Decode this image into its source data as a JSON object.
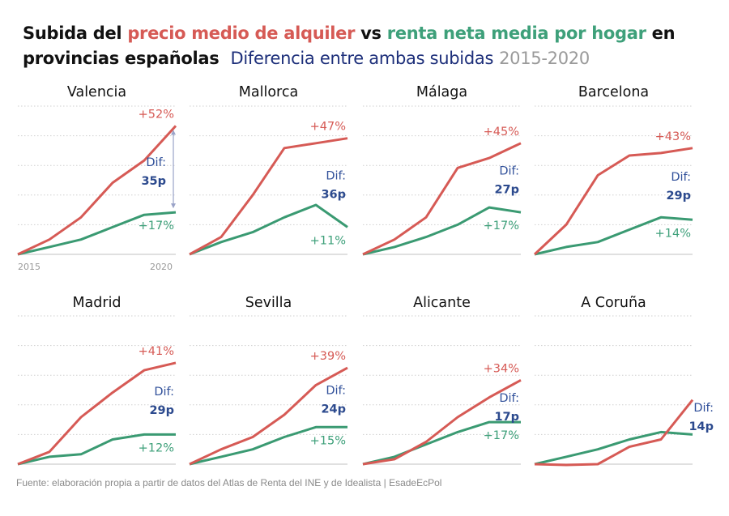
{
  "header": {
    "title_part1": "Subida del ",
    "title_rent": "precio medio de alquiler",
    "title_vs": " vs ",
    "title_income": "renta neta media por hogar",
    "title_part2": " en provincias españolas",
    "subtitle": "Diferencia entre ambas subidas",
    "years": "2015-2020"
  },
  "colors": {
    "rent": "#d65a55",
    "income": "#3a9a72",
    "difference": "#2c4a8e",
    "grid": "#cfcfcf"
  },
  "source": "Fuente: elaboración propia a partir de datos del Atlas de Renta del INE y de Idealista | EsadeEcPol",
  "chart_data": {
    "type": "line",
    "title": "Subida del precio medio de alquiler vs renta neta media por hogar en provincias españolas",
    "subtitle": "Diferencia entre ambas subidas 2015-2020",
    "x": [
      2015,
      2016,
      2017,
      2018,
      2019,
      2020
    ],
    "x_tick_labels": [
      "2015",
      "2020"
    ],
    "ylabel": "",
    "ylim": [
      0,
      60
    ],
    "grid": true,
    "y_grid_step": 12,
    "series_names": [
      "precio medio de alquiler",
      "renta neta media por hogar"
    ],
    "dif_label": "Dif:",
    "panels": [
      {
        "name": "Valencia",
        "rent": [
          0,
          6,
          15,
          29,
          38,
          52
        ],
        "income": [
          0,
          3,
          6,
          11,
          16,
          17
        ],
        "rent_label": "+52%",
        "income_label": "+17%",
        "dif_value": "35p",
        "arrow": true
      },
      {
        "name": "Mallorca",
        "rent": [
          0,
          7,
          24,
          43,
          45,
          47
        ],
        "income": [
          0,
          5,
          9,
          15,
          20,
          11
        ],
        "rent_label": "+47%",
        "income_label": "+11%",
        "dif_value": "36p",
        "arrow": false
      },
      {
        "name": "Málaga",
        "rent": [
          0,
          6,
          15,
          35,
          39,
          45
        ],
        "income": [
          0,
          3,
          7,
          12,
          19,
          17
        ],
        "rent_label": "+45%",
        "income_label": "+17%",
        "dif_value": "27p",
        "arrow": false
      },
      {
        "name": "Barcelona",
        "rent": [
          0,
          12,
          32,
          40,
          41,
          43
        ],
        "income": [
          0,
          3,
          5,
          10,
          15,
          14
        ],
        "rent_label": "+43%",
        "income_label": "+14%",
        "dif_value": "29p",
        "arrow": false
      },
      {
        "name": "Madrid",
        "rent": [
          0,
          5,
          19,
          29,
          38,
          41
        ],
        "income": [
          0,
          3,
          4,
          10,
          12,
          12
        ],
        "rent_label": "+41%",
        "income_label": "+12%",
        "dif_value": "29p",
        "arrow": false
      },
      {
        "name": "Sevilla",
        "rent": [
          0,
          6,
          11,
          20,
          32,
          39
        ],
        "income": [
          0,
          3,
          6,
          11,
          15,
          15
        ],
        "rent_label": "+39%",
        "income_label": "+15%",
        "dif_value": "24p",
        "arrow": false
      },
      {
        "name": "Alicante",
        "rent": [
          0,
          2,
          9,
          19,
          27,
          34
        ],
        "income": [
          0,
          3,
          8,
          13,
          17,
          17
        ],
        "rent_label": "+34%",
        "income_label": "+17%",
        "dif_value": "17p",
        "arrow": false
      },
      {
        "name": "A Coruña",
        "rent": [
          0,
          -1,
          0,
          7,
          10,
          26
        ],
        "income": [
          0,
          3,
          6,
          10,
          13,
          12
        ],
        "rent_label": "",
        "income_label": "",
        "dif_value": "14p",
        "arrow": false
      }
    ]
  }
}
